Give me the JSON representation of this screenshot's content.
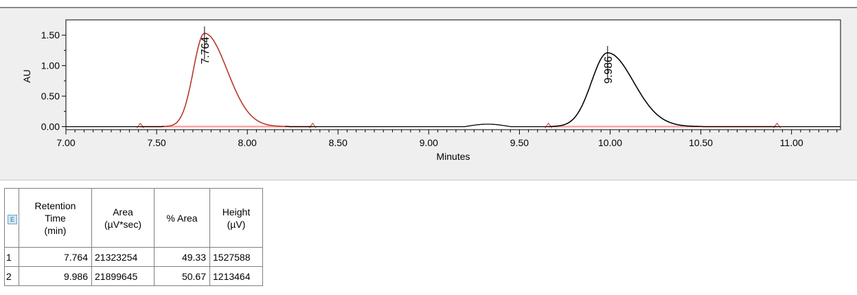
{
  "chart_data": {
    "type": "line",
    "xlabel": "Minutes",
    "ylabel": "AU",
    "xlim": [
      7.0,
      11.27
    ],
    "ylim": [
      -0.05,
      1.75
    ],
    "x_ticks": [
      "7.00",
      "7.50",
      "8.00",
      "8.50",
      "9.00",
      "9.50",
      "10.00",
      "10.50",
      "11.00"
    ],
    "y_ticks": [
      "0.00",
      "0.50",
      "1.00",
      "1.50"
    ],
    "peaks": [
      {
        "label": "7.764",
        "rt": 7.764,
        "height": 1.53,
        "start": 7.58,
        "end": 8.15,
        "color": "#c0392b"
      },
      {
        "label": "9.986",
        "rt": 9.986,
        "height": 1.21,
        "start": 9.72,
        "end": 10.43,
        "color": "#000000"
      }
    ],
    "minor_bump": {
      "center": 9.33,
      "height": 0.04,
      "start": 9.2,
      "end": 9.45
    },
    "integration_markers": [
      7.41,
      8.36,
      9.66,
      10.92
    ],
    "baseline_color": "#f5a3a3",
    "grid": false
  },
  "table": {
    "icon": "E",
    "headers": [
      "Retention Time (min)",
      "Area (µV*sec)",
      "% Area",
      "Height (µV)"
    ],
    "header_lines": [
      [
        "Retention",
        "Time",
        "(min)"
      ],
      [
        "Area",
        "(µV*sec)"
      ],
      [
        "% Area"
      ],
      [
        "Height",
        "(µV)"
      ]
    ],
    "rows": [
      {
        "index": "1",
        "rt": "7.764",
        "area": "21323254",
        "pct_area": "49.33",
        "height": "1527588"
      },
      {
        "index": "2",
        "rt": "9.986",
        "area": "21899645",
        "pct_area": "50.67",
        "height": "1213464"
      }
    ]
  }
}
